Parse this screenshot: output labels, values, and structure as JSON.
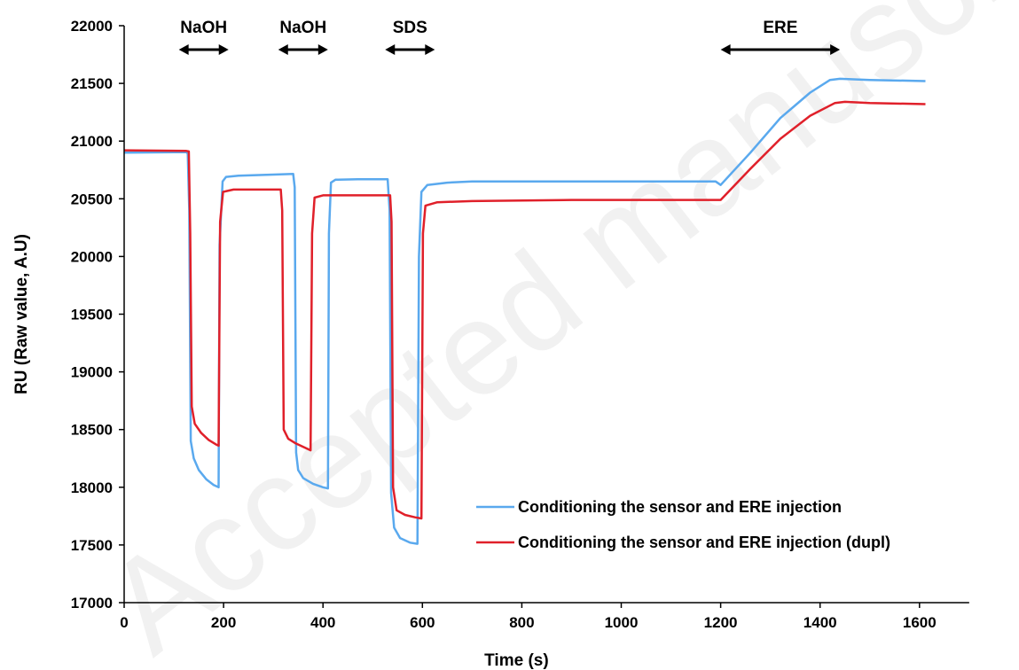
{
  "chart_data": {
    "type": "line",
    "xlabel": "Time (s)",
    "ylabel": "RU (Raw value, A.U)",
    "xlim": [
      0,
      1700
    ],
    "ylim": [
      17000,
      22000
    ],
    "xticks": [
      0,
      200,
      400,
      600,
      800,
      1000,
      1200,
      1400,
      1600
    ],
    "yticks": [
      17000,
      17500,
      18000,
      18500,
      19000,
      19500,
      20000,
      20500,
      21000,
      21500,
      22000
    ],
    "legend_position": "bottom-right",
    "grid": false,
    "series": [
      {
        "name": "Conditioning the sensor and ERE injection",
        "color": "#5aa9ee",
        "points": [
          [
            0,
            20900
          ],
          [
            125,
            20905
          ],
          [
            128,
            20890
          ],
          [
            131,
            20400
          ],
          [
            134,
            18400
          ],
          [
            140,
            18250
          ],
          [
            150,
            18150
          ],
          [
            165,
            18070
          ],
          [
            180,
            18020
          ],
          [
            190,
            18000
          ],
          [
            192,
            20100
          ],
          [
            198,
            20650
          ],
          [
            205,
            20690
          ],
          [
            230,
            20700
          ],
          [
            300,
            20710
          ],
          [
            340,
            20715
          ],
          [
            343,
            20600
          ],
          [
            346,
            18300
          ],
          [
            350,
            18150
          ],
          [
            360,
            18080
          ],
          [
            380,
            18030
          ],
          [
            400,
            18000
          ],
          [
            410,
            17990
          ],
          [
            412,
            20200
          ],
          [
            416,
            20640
          ],
          [
            425,
            20665
          ],
          [
            470,
            20670
          ],
          [
            530,
            20670
          ],
          [
            534,
            20400
          ],
          [
            537,
            17950
          ],
          [
            543,
            17650
          ],
          [
            555,
            17560
          ],
          [
            575,
            17520
          ],
          [
            590,
            17510
          ],
          [
            593,
            20000
          ],
          [
            598,
            20560
          ],
          [
            610,
            20620
          ],
          [
            650,
            20640
          ],
          [
            700,
            20650
          ],
          [
            900,
            20650
          ],
          [
            1100,
            20650
          ],
          [
            1190,
            20650
          ],
          [
            1200,
            20620
          ],
          [
            1260,
            20900
          ],
          [
            1320,
            21200
          ],
          [
            1380,
            21420
          ],
          [
            1420,
            21530
          ],
          [
            1440,
            21540
          ],
          [
            1500,
            21530
          ],
          [
            1612,
            21520
          ]
        ]
      },
      {
        "name": "Conditioning the sensor and ERE injection (dupl)",
        "color": "#e0202a",
        "points": [
          [
            0,
            20920
          ],
          [
            125,
            20915
          ],
          [
            130,
            20910
          ],
          [
            133,
            20200
          ],
          [
            136,
            18700
          ],
          [
            142,
            18550
          ],
          [
            155,
            18470
          ],
          [
            170,
            18410
          ],
          [
            185,
            18370
          ],
          [
            190,
            18360
          ],
          [
            193,
            20300
          ],
          [
            199,
            20560
          ],
          [
            220,
            20580
          ],
          [
            300,
            20580
          ],
          [
            315,
            20580
          ],
          [
            318,
            20400
          ],
          [
            321,
            18500
          ],
          [
            330,
            18420
          ],
          [
            345,
            18380
          ],
          [
            365,
            18340
          ],
          [
            375,
            18320
          ],
          [
            378,
            20200
          ],
          [
            383,
            20510
          ],
          [
            400,
            20530
          ],
          [
            470,
            20530
          ],
          [
            535,
            20530
          ],
          [
            538,
            20300
          ],
          [
            541,
            18000
          ],
          [
            548,
            17800
          ],
          [
            565,
            17760
          ],
          [
            585,
            17740
          ],
          [
            598,
            17730
          ],
          [
            601,
            20200
          ],
          [
            606,
            20440
          ],
          [
            630,
            20470
          ],
          [
            700,
            20480
          ],
          [
            900,
            20490
          ],
          [
            1100,
            20490
          ],
          [
            1200,
            20490
          ],
          [
            1260,
            20760
          ],
          [
            1320,
            21020
          ],
          [
            1380,
            21220
          ],
          [
            1430,
            21330
          ],
          [
            1450,
            21340
          ],
          [
            1500,
            21330
          ],
          [
            1612,
            21320
          ]
        ]
      }
    ],
    "annotations": [
      {
        "label": "NaOH",
        "x_start": 110,
        "x_end": 210
      },
      {
        "label": "NaOH",
        "x_start": 310,
        "x_end": 410
      },
      {
        "label": "SDS",
        "x_start": 525,
        "x_end": 625
      },
      {
        "label": "ERE",
        "x_start": 1200,
        "x_end": 1440
      }
    ]
  },
  "watermark": "Accepted manuscript"
}
